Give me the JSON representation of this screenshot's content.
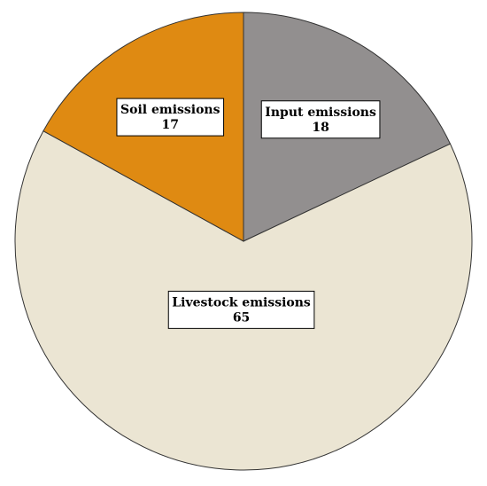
{
  "chart_data": {
    "type": "pie",
    "categories": [
      "Input emissions",
      "Livestock emissions",
      "Soil emissions"
    ],
    "values": [
      18,
      65,
      17
    ],
    "colors": [
      "#928f8f",
      "#ebe5d3",
      "#df8a12"
    ]
  }
}
